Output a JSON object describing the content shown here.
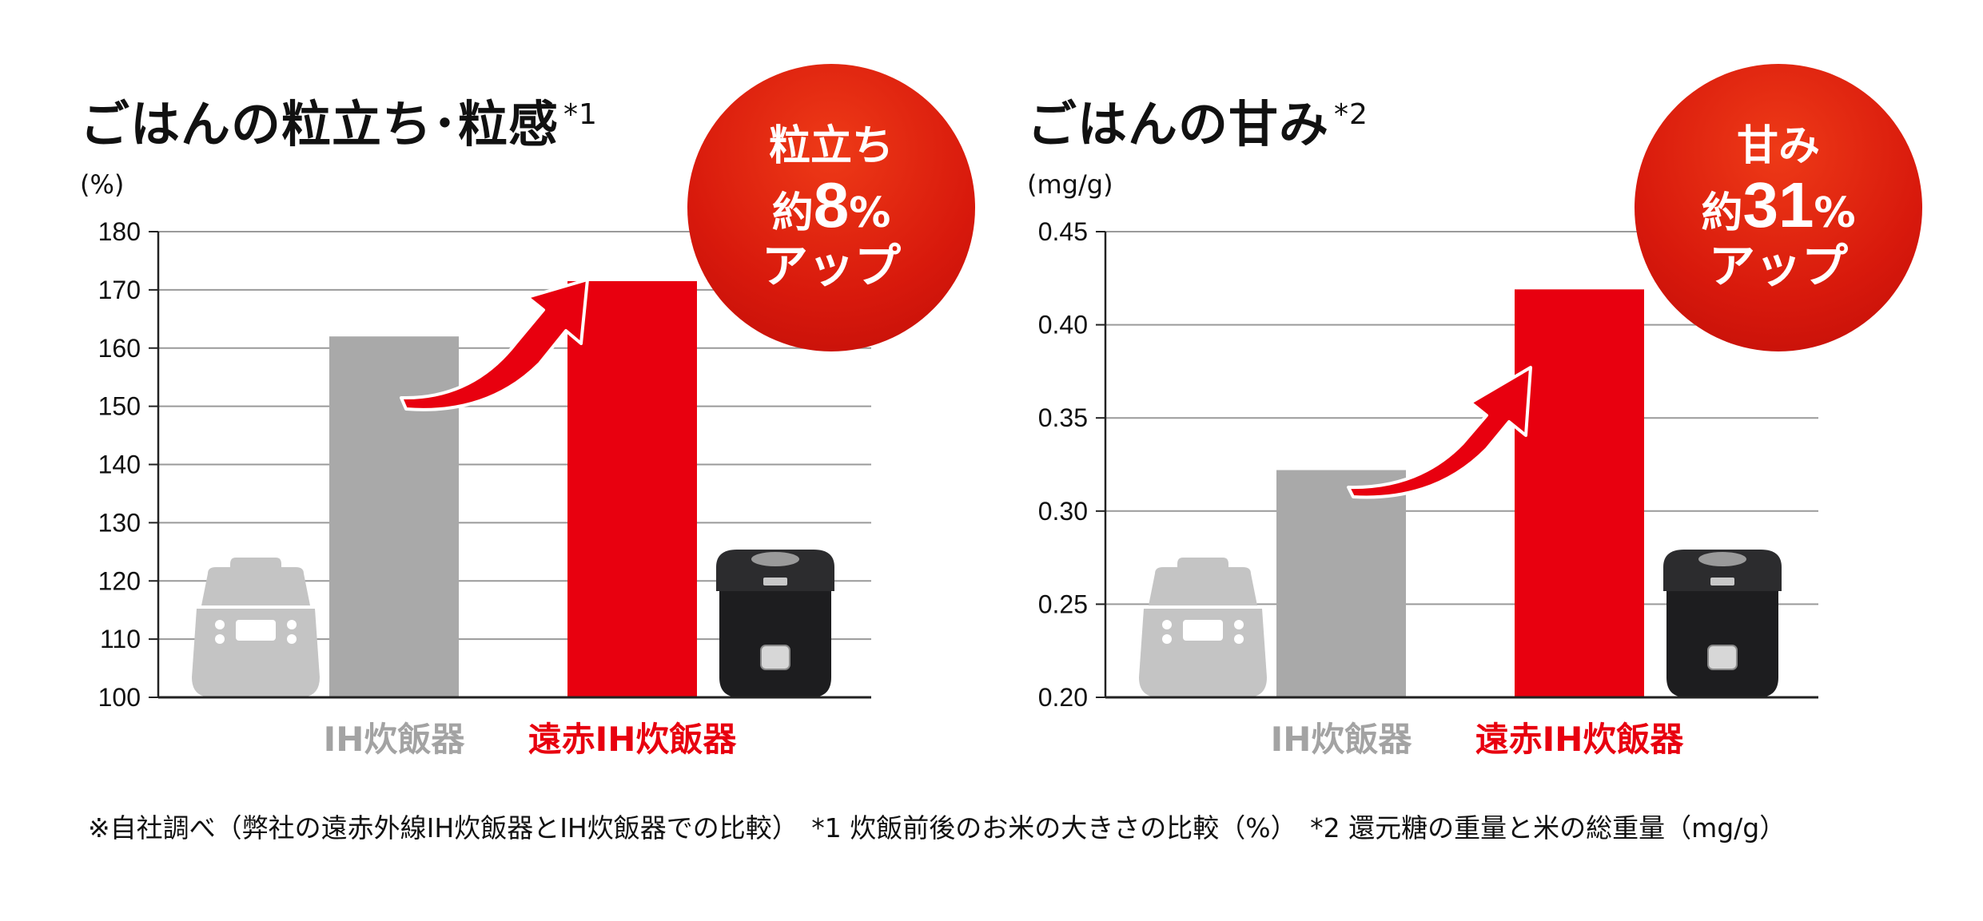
{
  "chart_data": [
    {
      "type": "bar",
      "title": "ごはんの粒立ち･粒感",
      "title_note": "*1",
      "unit": "(%)",
      "ylim": [
        100,
        180
      ],
      "yticks": [
        "100",
        "110",
        "120",
        "130",
        "140",
        "150",
        "160",
        "170",
        "180"
      ],
      "grid": true,
      "categories": [
        "IH炊飯器",
        "遠赤IH炊飯器"
      ],
      "values": [
        162,
        171.5
      ],
      "colors": [
        "#a9a9a9",
        "#e8000f"
      ],
      "label_colors": [
        "#a3a3a3",
        "#e8000f"
      ],
      "badge": {
        "line1": "粒立ち",
        "prefix": "約",
        "number": "8",
        "suffix": "%",
        "line3": "アップ"
      }
    },
    {
      "type": "bar",
      "title": "ごはんの甘み",
      "title_note": "*2",
      "unit": "(mg/g)",
      "ylim": [
        0.2,
        0.45
      ],
      "yticks": [
        "0.20",
        "0.25",
        "0.30",
        "0.35",
        "0.40",
        "0.45"
      ],
      "grid": true,
      "categories": [
        "IH炊飯器",
        "遠赤IH炊飯器"
      ],
      "values": [
        0.322,
        0.419
      ],
      "colors": [
        "#a9a9a9",
        "#e8000f"
      ],
      "label_colors": [
        "#a3a3a3",
        "#e8000f"
      ],
      "badge": {
        "line1": "甘み",
        "prefix": "約",
        "number": "31",
        "suffix": "%",
        "line3": "アップ"
      }
    }
  ],
  "footnote": "※自社調べ（弊社の遠赤外線IH炊飯器とIH炊飯器での比較）　*1 炊飯前後のお米の大きさの比較（%）　*2 還元糖の重量と米の総重量（mg/g）",
  "icons": [
    "rice-cooker-silhouette-icon",
    "rice-cooker-product-icon",
    "up-arrow-icon"
  ]
}
